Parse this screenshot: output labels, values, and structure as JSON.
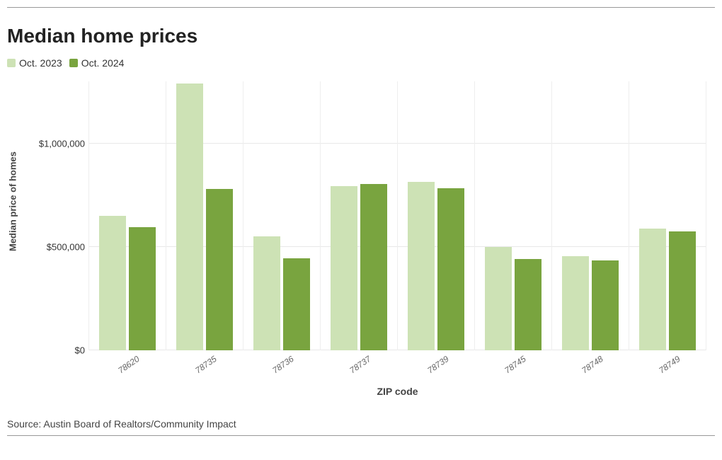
{
  "chart": {
    "type": "grouped-bar",
    "title": "Median home prices",
    "x_label": "ZIP code",
    "y_label": "Median price of homes",
    "source": "Source: Austin Board of Realtors/Community Impact",
    "background_color": "#ffffff",
    "grid_color": "#e8e8e8",
    "divider_color": "#eeeeee",
    "rule_color": "#999999",
    "text_color": "#333333",
    "title_fontsize": 28,
    "axis_label_fontsize": 14,
    "tick_fontsize": 13,
    "ylim": [
      0,
      1300000
    ],
    "yticks": [
      {
        "value": 0,
        "label": "$0"
      },
      {
        "value": 500000,
        "label": "$500,000"
      },
      {
        "value": 1000000,
        "label": "$1,000,000"
      }
    ],
    "series": [
      {
        "name": "Oct. 2023",
        "color": "#cde2b5"
      },
      {
        "name": "Oct. 2024",
        "color": "#79a43f"
      }
    ],
    "categories": [
      {
        "label": "78620",
        "values": [
          650000,
          595000
        ]
      },
      {
        "label": "78735",
        "values": [
          1290000,
          780000
        ]
      },
      {
        "label": "78736",
        "values": [
          550000,
          445000
        ]
      },
      {
        "label": "78737",
        "values": [
          795000,
          805000
        ]
      },
      {
        "label": "78739",
        "values": [
          815000,
          785000
        ]
      },
      {
        "label": "78745",
        "values": [
          500000,
          440000
        ]
      },
      {
        "label": "78748",
        "values": [
          455000,
          435000
        ]
      },
      {
        "label": "78749",
        "values": [
          590000,
          575000
        ]
      }
    ]
  }
}
